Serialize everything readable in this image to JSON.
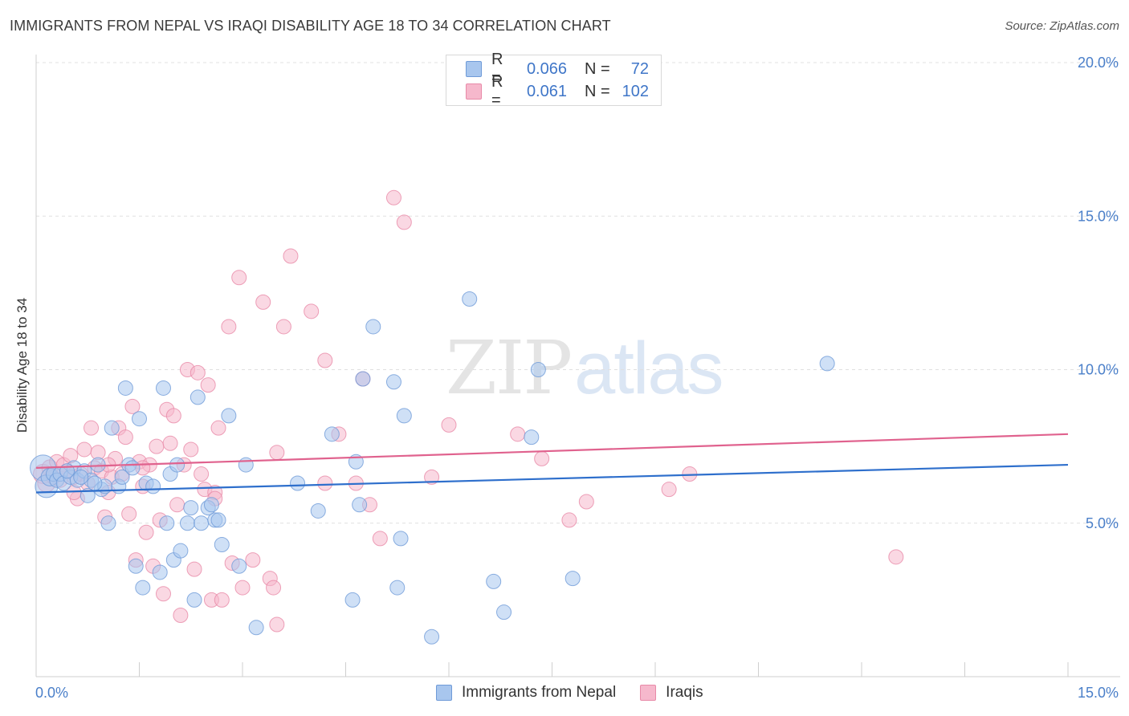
{
  "title": "IMMIGRANTS FROM NEPAL VS IRAQI DISABILITY AGE 18 TO 34 CORRELATION CHART",
  "source": "Source: ZipAtlas.com",
  "watermark": {
    "zip": "ZIP",
    "atlas": "atlas"
  },
  "colors": {
    "nepal_fill": "#a8c6ee",
    "nepal_stroke": "#6f9bd8",
    "nepal_line": "#2e6fcc",
    "iraqi_fill": "#f6b8cc",
    "iraqi_stroke": "#e88aa8",
    "iraqi_line": "#e0628e",
    "grid": "#e0e0e0",
    "tick_text": "#4a7fc9"
  },
  "legend": {
    "rows": [
      {
        "r_label": "R =",
        "r_value": "0.066",
        "n_label": "N =",
        "n_value": "72"
      },
      {
        "r_label": "R =",
        "r_value": "0.061",
        "n_label": "N =",
        "n_value": "102"
      }
    ]
  },
  "bottom_legend": {
    "nepal": "Immigrants from Nepal",
    "iraqi": "Iraqis"
  },
  "chart_data": {
    "type": "scatter",
    "title": "IMMIGRANTS FROM NEPAL VS IRAQI DISABILITY AGE 18 TO 34 CORRELATION CHART",
    "xlabel": "",
    "ylabel": "Disability Age 18 to 34",
    "xlim": [
      0,
      15
    ],
    "ylim": [
      0,
      20
    ],
    "x_tick_labels": [
      "0.0%",
      "15.0%"
    ],
    "y_ticks": [
      5,
      10,
      15,
      20
    ],
    "y_tick_labels": [
      "5.0%",
      "10.0%",
      "15.0%",
      "20.0%"
    ],
    "series": [
      {
        "name": "Immigrants from Nepal",
        "r": 0.066,
        "n": 72,
        "trend": {
          "x": [
            0,
            15
          ],
          "y": [
            6.0,
            6.9
          ]
        },
        "points": [
          {
            "x": 0.1,
            "y": 6.8,
            "s": 16
          },
          {
            "x": 0.15,
            "y": 6.2,
            "s": 14
          },
          {
            "x": 0.2,
            "y": 6.5,
            "s": 11
          },
          {
            "x": 0.25,
            "y": 6.6,
            "s": 9
          },
          {
            "x": 0.3,
            "y": 6.4,
            "s": 9
          },
          {
            "x": 0.35,
            "y": 6.6,
            "s": 9
          },
          {
            "x": 0.4,
            "y": 6.3,
            "s": 9
          },
          {
            "x": 0.5,
            "y": 6.5,
            "s": 9
          },
          {
            "x": 0.55,
            "y": 6.8,
            "s": 9
          },
          {
            "x": 0.6,
            "y": 6.4,
            "s": 9
          },
          {
            "x": 0.7,
            "y": 6.7,
            "s": 9
          },
          {
            "x": 0.75,
            "y": 5.9,
            "s": 9
          },
          {
            "x": 0.8,
            "y": 6.4,
            "s": 9
          },
          {
            "x": 0.9,
            "y": 6.9,
            "s": 9
          },
          {
            "x": 0.95,
            "y": 6.1,
            "s": 9
          },
          {
            "x": 1.0,
            "y": 6.2,
            "s": 9
          },
          {
            "x": 1.05,
            "y": 5.0,
            "s": 9
          },
          {
            "x": 1.1,
            "y": 8.1,
            "s": 9
          },
          {
            "x": 1.2,
            "y": 6.2,
            "s": 9
          },
          {
            "x": 1.25,
            "y": 6.5,
            "s": 9
          },
          {
            "x": 1.3,
            "y": 9.4,
            "s": 9
          },
          {
            "x": 1.35,
            "y": 6.9,
            "s": 9
          },
          {
            "x": 1.4,
            "y": 6.8,
            "s": 9
          },
          {
            "x": 1.45,
            "y": 3.6,
            "s": 9
          },
          {
            "x": 1.5,
            "y": 8.4,
            "s": 9
          },
          {
            "x": 1.55,
            "y": 2.9,
            "s": 9
          },
          {
            "x": 1.6,
            "y": 6.3,
            "s": 9
          },
          {
            "x": 1.7,
            "y": 6.2,
            "s": 9
          },
          {
            "x": 1.8,
            "y": 3.4,
            "s": 9
          },
          {
            "x": 1.85,
            "y": 9.4,
            "s": 9
          },
          {
            "x": 1.9,
            "y": 5.0,
            "s": 9
          },
          {
            "x": 1.95,
            "y": 6.6,
            "s": 9
          },
          {
            "x": 2.0,
            "y": 3.8,
            "s": 9
          },
          {
            "x": 2.05,
            "y": 6.9,
            "s": 9
          },
          {
            "x": 2.1,
            "y": 4.1,
            "s": 9
          },
          {
            "x": 2.2,
            "y": 5.0,
            "s": 9
          },
          {
            "x": 2.25,
            "y": 5.5,
            "s": 9
          },
          {
            "x": 2.3,
            "y": 2.5,
            "s": 9
          },
          {
            "x": 2.35,
            "y": 9.1,
            "s": 9
          },
          {
            "x": 2.4,
            "y": 5.0,
            "s": 9
          },
          {
            "x": 2.5,
            "y": 5.5,
            "s": 9
          },
          {
            "x": 2.55,
            "y": 5.6,
            "s": 9
          },
          {
            "x": 2.6,
            "y": 5.1,
            "s": 9
          },
          {
            "x": 2.65,
            "y": 5.1,
            "s": 9
          },
          {
            "x": 2.7,
            "y": 4.3,
            "s": 9
          },
          {
            "x": 2.8,
            "y": 8.5,
            "s": 9
          },
          {
            "x": 2.95,
            "y": 3.6,
            "s": 9
          },
          {
            "x": 3.05,
            "y": 6.9,
            "s": 9
          },
          {
            "x": 3.2,
            "y": 1.6,
            "s": 9
          },
          {
            "x": 3.8,
            "y": 6.3,
            "s": 9
          },
          {
            "x": 4.1,
            "y": 5.4,
            "s": 9
          },
          {
            "x": 4.3,
            "y": 7.9,
            "s": 9
          },
          {
            "x": 4.6,
            "y": 2.5,
            "s": 9
          },
          {
            "x": 4.65,
            "y": 7.0,
            "s": 9
          },
          {
            "x": 4.7,
            "y": 5.6,
            "s": 9
          },
          {
            "x": 4.75,
            "y": 9.7,
            "s": 9
          },
          {
            "x": 4.9,
            "y": 11.4,
            "s": 9
          },
          {
            "x": 5.2,
            "y": 9.6,
            "s": 9
          },
          {
            "x": 5.25,
            "y": 2.9,
            "s": 9
          },
          {
            "x": 5.3,
            "y": 4.5,
            "s": 9
          },
          {
            "x": 5.35,
            "y": 8.5,
            "s": 9
          },
          {
            "x": 5.75,
            "y": 1.3,
            "s": 9
          },
          {
            "x": 6.3,
            "y": 12.3,
            "s": 9
          },
          {
            "x": 6.65,
            "y": 3.1,
            "s": 9
          },
          {
            "x": 6.8,
            "y": 2.1,
            "s": 9
          },
          {
            "x": 7.2,
            "y": 7.8,
            "s": 9
          },
          {
            "x": 7.3,
            "y": 10.0,
            "s": 9
          },
          {
            "x": 7.8,
            "y": 3.2,
            "s": 9
          },
          {
            "x": 11.5,
            "y": 10.2,
            "s": 9
          },
          {
            "x": 0.45,
            "y": 6.7,
            "s": 9
          },
          {
            "x": 0.65,
            "y": 6.5,
            "s": 9
          },
          {
            "x": 0.85,
            "y": 6.3,
            "s": 9
          }
        ]
      },
      {
        "name": "Iraqis",
        "r": 0.061,
        "n": 102,
        "trend": {
          "x": [
            0,
            15
          ],
          "y": [
            6.8,
            7.9
          ]
        },
        "points": [
          {
            "x": 0.1,
            "y": 6.6,
            "s": 12
          },
          {
            "x": 0.15,
            "y": 6.3,
            "s": 11
          },
          {
            "x": 0.2,
            "y": 6.8,
            "s": 10
          },
          {
            "x": 0.25,
            "y": 6.5,
            "s": 9
          },
          {
            "x": 0.3,
            "y": 7.0,
            "s": 9
          },
          {
            "x": 0.35,
            "y": 6.4,
            "s": 9
          },
          {
            "x": 0.4,
            "y": 6.9,
            "s": 9
          },
          {
            "x": 0.45,
            "y": 6.7,
            "s": 9
          },
          {
            "x": 0.5,
            "y": 7.2,
            "s": 9
          },
          {
            "x": 0.55,
            "y": 6.5,
            "s": 9
          },
          {
            "x": 0.6,
            "y": 5.8,
            "s": 9
          },
          {
            "x": 0.65,
            "y": 6.6,
            "s": 9
          },
          {
            "x": 0.7,
            "y": 7.4,
            "s": 9
          },
          {
            "x": 0.75,
            "y": 6.3,
            "s": 9
          },
          {
            "x": 0.8,
            "y": 8.1,
            "s": 9
          },
          {
            "x": 0.85,
            "y": 6.8,
            "s": 9
          },
          {
            "x": 0.9,
            "y": 7.3,
            "s": 9
          },
          {
            "x": 0.95,
            "y": 6.7,
            "s": 9
          },
          {
            "x": 1.0,
            "y": 5.2,
            "s": 9
          },
          {
            "x": 1.05,
            "y": 6.0,
            "s": 9
          },
          {
            "x": 1.1,
            "y": 6.5,
            "s": 9
          },
          {
            "x": 1.15,
            "y": 7.1,
            "s": 9
          },
          {
            "x": 1.2,
            "y": 8.1,
            "s": 9
          },
          {
            "x": 1.25,
            "y": 6.6,
            "s": 9
          },
          {
            "x": 1.3,
            "y": 7.8,
            "s": 9
          },
          {
            "x": 1.35,
            "y": 5.3,
            "s": 9
          },
          {
            "x": 1.4,
            "y": 8.8,
            "s": 9
          },
          {
            "x": 1.45,
            "y": 3.8,
            "s": 9
          },
          {
            "x": 1.5,
            "y": 7.0,
            "s": 9
          },
          {
            "x": 1.55,
            "y": 6.2,
            "s": 9
          },
          {
            "x": 1.6,
            "y": 4.7,
            "s": 9
          },
          {
            "x": 1.65,
            "y": 6.9,
            "s": 9
          },
          {
            "x": 1.7,
            "y": 3.6,
            "s": 9
          },
          {
            "x": 1.75,
            "y": 7.5,
            "s": 9
          },
          {
            "x": 1.8,
            "y": 5.1,
            "s": 9
          },
          {
            "x": 1.85,
            "y": 2.7,
            "s": 9
          },
          {
            "x": 1.9,
            "y": 8.7,
            "s": 9
          },
          {
            "x": 1.95,
            "y": 7.6,
            "s": 9
          },
          {
            "x": 2.0,
            "y": 8.5,
            "s": 9
          },
          {
            "x": 2.05,
            "y": 5.6,
            "s": 9
          },
          {
            "x": 2.1,
            "y": 2.0,
            "s": 9
          },
          {
            "x": 2.15,
            "y": 6.9,
            "s": 9
          },
          {
            "x": 2.2,
            "y": 10.0,
            "s": 9
          },
          {
            "x": 2.25,
            "y": 7.4,
            "s": 9
          },
          {
            "x": 2.3,
            "y": 3.5,
            "s": 9
          },
          {
            "x": 2.35,
            "y": 9.9,
            "s": 9
          },
          {
            "x": 2.4,
            "y": 6.6,
            "s": 9
          },
          {
            "x": 2.45,
            "y": 6.1,
            "s": 9
          },
          {
            "x": 2.5,
            "y": 9.5,
            "s": 9
          },
          {
            "x": 2.55,
            "y": 2.5,
            "s": 9
          },
          {
            "x": 2.6,
            "y": 6.0,
            "s": 9
          },
          {
            "x": 2.65,
            "y": 8.1,
            "s": 9
          },
          {
            "x": 2.7,
            "y": 2.5,
            "s": 9
          },
          {
            "x": 2.8,
            "y": 11.4,
            "s": 9
          },
          {
            "x": 2.85,
            "y": 3.7,
            "s": 9
          },
          {
            "x": 2.95,
            "y": 13.0,
            "s": 9
          },
          {
            "x": 3.0,
            "y": 2.9,
            "s": 9
          },
          {
            "x": 3.15,
            "y": 3.8,
            "s": 9
          },
          {
            "x": 3.3,
            "y": 12.2,
            "s": 9
          },
          {
            "x": 3.4,
            "y": 3.2,
            "s": 9
          },
          {
            "x": 3.45,
            "y": 2.9,
            "s": 9
          },
          {
            "x": 3.5,
            "y": 7.3,
            "s": 9
          },
          {
            "x": 3.6,
            "y": 11.4,
            "s": 9
          },
          {
            "x": 3.7,
            "y": 13.7,
            "s": 9
          },
          {
            "x": 4.0,
            "y": 11.9,
            "s": 9
          },
          {
            "x": 4.2,
            "y": 10.3,
            "s": 9
          },
          {
            "x": 4.4,
            "y": 7.9,
            "s": 9
          },
          {
            "x": 4.75,
            "y": 9.7,
            "s": 9
          },
          {
            "x": 5.0,
            "y": 4.5,
            "s": 9
          },
          {
            "x": 5.2,
            "y": 15.6,
            "s": 9
          },
          {
            "x": 5.35,
            "y": 14.8,
            "s": 9
          },
          {
            "x": 5.75,
            "y": 6.5,
            "s": 9
          },
          {
            "x": 6.0,
            "y": 8.2,
            "s": 9
          },
          {
            "x": 7.0,
            "y": 7.9,
            "s": 9
          },
          {
            "x": 7.35,
            "y": 7.1,
            "s": 9
          },
          {
            "x": 7.75,
            "y": 5.1,
            "s": 9
          },
          {
            "x": 8.0,
            "y": 5.7,
            "s": 9
          },
          {
            "x": 9.2,
            "y": 6.1,
            "s": 9
          },
          {
            "x": 9.5,
            "y": 6.6,
            "s": 9
          },
          {
            "x": 12.5,
            "y": 3.9,
            "s": 9
          },
          {
            "x": 3.5,
            "y": 1.7,
            "s": 9
          },
          {
            "x": 4.65,
            "y": 6.3,
            "s": 9
          },
          {
            "x": 4.85,
            "y": 5.6,
            "s": 9
          },
          {
            "x": 4.2,
            "y": 6.3,
            "s": 9
          },
          {
            "x": 0.55,
            "y": 6.0,
            "s": 9
          },
          {
            "x": 1.05,
            "y": 6.9,
            "s": 9
          },
          {
            "x": 1.55,
            "y": 6.8,
            "s": 9
          },
          {
            "x": 2.6,
            "y": 5.8,
            "s": 9
          }
        ]
      }
    ]
  }
}
